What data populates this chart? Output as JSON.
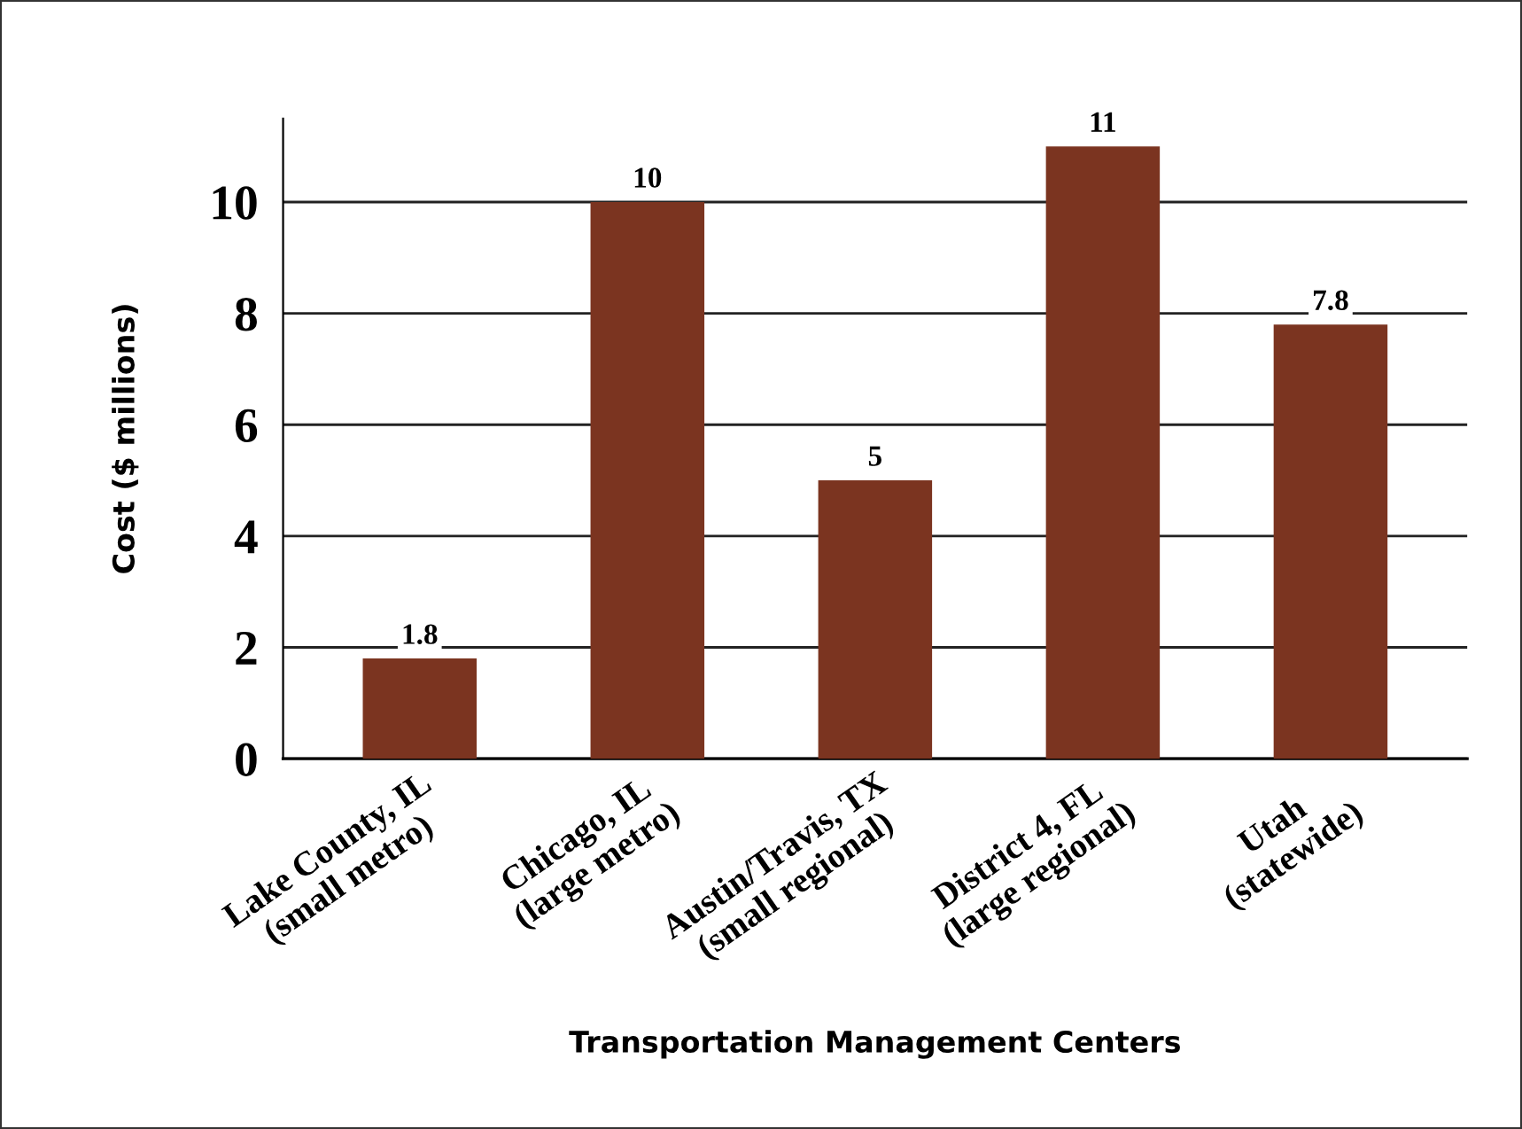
{
  "chart_data": {
    "type": "bar",
    "xlabel": "Transportation Management Centers",
    "ylabel": "Cost ($ millions)",
    "categories": [
      "Lake County, IL\n(small metro)",
      "Chicago, IL\n(large metro)",
      "Austin/Travis, TX\n(small regional)",
      "District 4, FL\n(large regional)",
      "Utah\n(statewide)"
    ],
    "values": [
      1.8,
      10,
      5,
      11,
      7.8
    ],
    "color": "#7b3420",
    "data_labels": true,
    "ylim": [
      0,
      11.5
    ],
    "yticks": [
      0,
      2,
      4,
      6,
      8,
      10
    ],
    "grid": "y",
    "legend": false
  }
}
